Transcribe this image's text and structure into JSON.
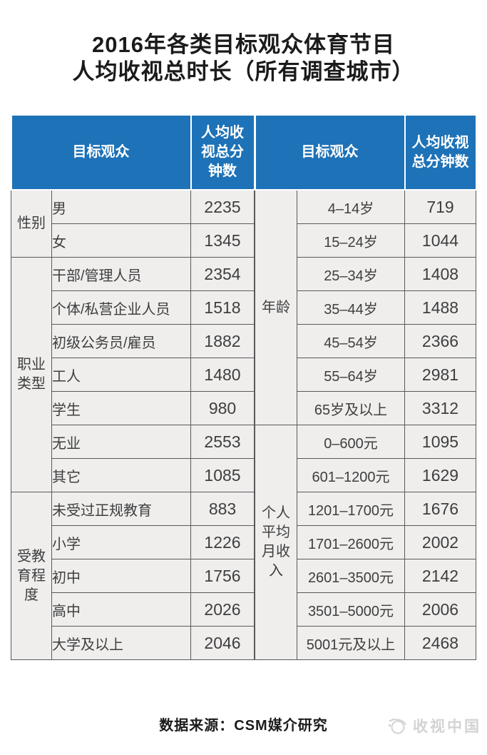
{
  "title": {
    "line1": "2016年各类目标观众体育节目",
    "line2": "人均收视总时长（所有调查城市）"
  },
  "table": {
    "header_target": "目标观众",
    "header_minutes": "人均收视总分钟数",
    "left_group_indices": [
      0,
      1,
      2
    ],
    "right_group_indices": [
      3,
      4
    ]
  },
  "chart_data": {
    "type": "table",
    "title": "2016年各类目标观众体育节目人均收视总时长（所有调查城市）",
    "value_label": "人均收视总分钟数",
    "groups": [
      {
        "dimension": "性别",
        "rows": [
          [
            "男",
            2235
          ],
          [
            "女",
            1345
          ]
        ]
      },
      {
        "dimension": "职业类型",
        "rows": [
          [
            "干部/管理人员",
            2354
          ],
          [
            "个体/私营企业人员",
            1518
          ],
          [
            "初级公务员/雇员",
            1882
          ],
          [
            "工人",
            1480
          ],
          [
            "学生",
            980
          ],
          [
            "无业",
            2553
          ],
          [
            "其它",
            1085
          ]
        ]
      },
      {
        "dimension": "受教育程度",
        "rows": [
          [
            "未受过正规教育",
            883
          ],
          [
            "小学",
            1226
          ],
          [
            "初中",
            1756
          ],
          [
            "高中",
            2026
          ],
          [
            "大学及以上",
            2046
          ]
        ]
      },
      {
        "dimension": "年龄",
        "rows": [
          [
            "4–14岁",
            719
          ],
          [
            "15–24岁",
            1044
          ],
          [
            "25–34岁",
            1408
          ],
          [
            "35–44岁",
            1488
          ],
          [
            "45–54岁",
            2366
          ],
          [
            "55–64岁",
            2981
          ],
          [
            "65岁及以上",
            3312
          ]
        ]
      },
      {
        "dimension": "个人平均月收入",
        "rows": [
          [
            "0–600元",
            1095
          ],
          [
            "601–1200元",
            1629
          ],
          [
            "1201–1700元",
            1676
          ],
          [
            "1701–2600元",
            2002
          ],
          [
            "2601–3500元",
            2142
          ],
          [
            "3501–5000元",
            2006
          ],
          [
            "5001元及以上",
            2468
          ]
        ]
      }
    ],
    "layout_hint": "two side-by-side table halves sharing one header style; left half: gender/occupation/education, right half: age/income"
  },
  "footer": {
    "source": "数据来源：CSM媒介研究"
  },
  "watermark": {
    "label": "收视中国",
    "icon": "globe-orbit-icon"
  },
  "colors": {
    "header_bg": "#1e72b7",
    "header_text": "#ffffff",
    "cell_bg": "#efeeec",
    "border": "#59595b",
    "body_text": "#3e3e40",
    "watermark_text": "#d3d3d3"
  }
}
